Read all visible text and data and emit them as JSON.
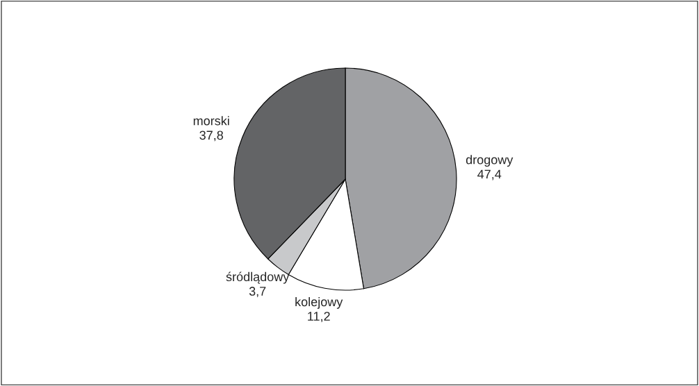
{
  "chart_data": {
    "type": "pie",
    "categories": [
      "drogowy",
      "kolejowy",
      "śródlądowy",
      "morski"
    ],
    "values": [
      47.4,
      11.2,
      3.7,
      37.8
    ],
    "value_labels": [
      "47,4",
      "11,2",
      "3,7",
      "37,8"
    ],
    "colors": [
      "#a0a1a4",
      "#ffffff",
      "#c8c9cb",
      "#636466"
    ],
    "legend": false
  }
}
